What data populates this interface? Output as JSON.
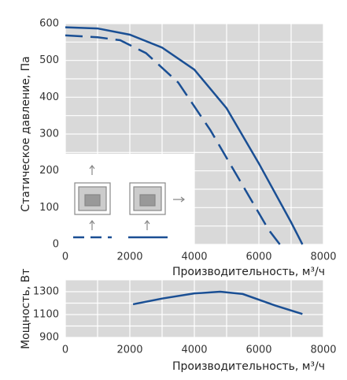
{
  "chart_data": [
    {
      "type": "line",
      "ylabel": "Статическое давление, Па",
      "xlabel": "Производительность, м³/ч",
      "xlim": [
        0,
        8000
      ],
      "xticks": [
        0,
        2000,
        4000,
        6000,
        8000
      ],
      "xminorticks": [
        1000,
        3000,
        5000,
        7000
      ],
      "ylim": [
        0,
        600
      ],
      "yticks": [
        0,
        100,
        200,
        300,
        400,
        500,
        600
      ],
      "yminorticks": [
        50,
        150,
        250,
        350,
        450,
        550
      ],
      "grid": true,
      "background": "#d9d9d9",
      "series": [
        {
          "color": "#1a4f94",
          "dashed": false,
          "x": [
            0,
            1000,
            2000,
            3000,
            4000,
            5000,
            6000,
            7000,
            7350
          ],
          "values": [
            590,
            587,
            570,
            535,
            475,
            370,
            220,
            60,
            0
          ]
        },
        {
          "color": "#1a4f94",
          "dashed": true,
          "x": [
            0,
            1000,
            1700,
            2500,
            3500,
            4500,
            5500,
            6300,
            6650
          ],
          "values": [
            568,
            563,
            555,
            520,
            440,
            310,
            160,
            40,
            0
          ]
        }
      ]
    },
    {
      "type": "line",
      "ylabel": "Мощность, Вт",
      "xlabel": "Производительность, м³/ч",
      "xlim": [
        0,
        8000
      ],
      "xticks": [
        0,
        2000,
        4000,
        6000,
        8000
      ],
      "xminorticks": [
        1000,
        3000,
        5000,
        7000
      ],
      "ylim": [
        900,
        1400
      ],
      "yticks": [
        900,
        1100,
        1300
      ],
      "yminorticks": [
        1000,
        1200
      ],
      "grid": true,
      "background": "#d9d9d9",
      "series": [
        {
          "color": "#1a4f94",
          "dashed": false,
          "x": [
            2100,
            3000,
            4000,
            4800,
            5500,
            6500,
            7350
          ],
          "values": [
            1190,
            1240,
            1285,
            1300,
            1280,
            1180,
            1105
          ]
        }
      ]
    }
  ]
}
